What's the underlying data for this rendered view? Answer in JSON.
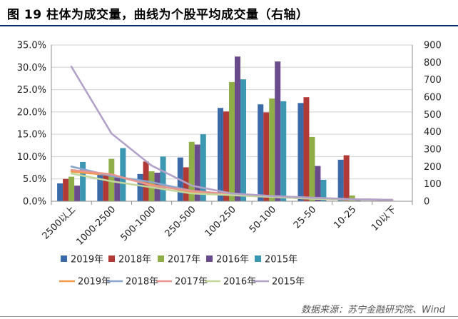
{
  "header": {
    "title": "图 19 柱体为成交量，曲线为个股平均成交量（右轴）",
    "source": "数据来源：苏宁金融研究院、Wind"
  },
  "chart_data": {
    "type": "bar+line",
    "categories": [
      "2500以上",
      "1000-2500",
      "500-1000",
      "250-500",
      "100-250",
      "50-100",
      "25-50",
      "10-25",
      "10以下"
    ],
    "y_left": {
      "min": 0,
      "max": 35,
      "step": 5,
      "format": "percent",
      "tick_labels": [
        "0.0%",
        "5.0%",
        "10.0%",
        "15.0%",
        "20.0%",
        "25.0%",
        "30.0%",
        "35.0%"
      ]
    },
    "y_right": {
      "min": 0,
      "max": 900,
      "step": 100,
      "tick_labels": [
        "0",
        "100",
        "200",
        "300",
        "400",
        "500",
        "600",
        "700",
        "800",
        "900"
      ]
    },
    "grid": "horizontal",
    "legend_position": "bottom",
    "bar_series": [
      {
        "name": "2019年",
        "color": "#3b6aa8",
        "values": [
          4.0,
          6.0,
          6.1,
          9.8,
          20.9,
          21.7,
          22.0,
          9.3,
          0.2
        ]
      },
      {
        "name": "2018年",
        "color": "#b13a37",
        "values": [
          5.0,
          5.8,
          8.9,
          7.6,
          20.1,
          19.9,
          23.3,
          10.3,
          0.3
        ]
      },
      {
        "name": "2017年",
        "color": "#8fae47",
        "values": [
          5.5,
          9.5,
          6.7,
          13.3,
          26.7,
          23.0,
          14.4,
          1.3,
          0.1
        ]
      },
      {
        "name": "2016年",
        "color": "#6a4b8c",
        "values": [
          3.5,
          5.5,
          6.4,
          12.7,
          32.4,
          31.3,
          7.9,
          0.2,
          0.0
        ]
      },
      {
        "name": "2015年",
        "color": "#3c97b2",
        "values": [
          8.8,
          11.9,
          10.0,
          15.0,
          27.3,
          22.4,
          4.8,
          0.1,
          0.0
        ]
      }
    ],
    "line_series": [
      {
        "name": "2019年",
        "color": "#f29a4c",
        "values": [
          170,
          150,
          95,
          55,
          35,
          25,
          15,
          10,
          8
        ]
      },
      {
        "name": "2018年",
        "color": "#8aa6cc",
        "values": [
          200,
          145,
          110,
          60,
          40,
          25,
          15,
          10,
          8
        ]
      },
      {
        "name": "2017年",
        "color": "#e9958f",
        "values": [
          180,
          155,
          90,
          60,
          40,
          30,
          20,
          12,
          8
        ]
      },
      {
        "name": "2016年",
        "color": "#c3d69b",
        "values": [
          160,
          115,
          80,
          45,
          35,
          25,
          15,
          10,
          8
        ]
      },
      {
        "name": "2015年",
        "color": "#b3a2c7",
        "values": [
          775,
          390,
          205,
          90,
          45,
          30,
          20,
          12,
          8
        ]
      }
    ]
  }
}
